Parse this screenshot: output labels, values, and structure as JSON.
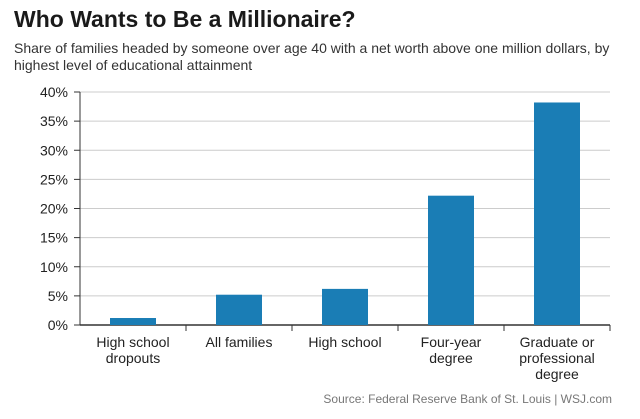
{
  "title": "Who Wants to Be a Millionaire?",
  "subtitle": "Share of families headed by someone over age 40 with a net worth above one million dollars, by highest level of educational attainment",
  "source": "Source: Federal Reserve Bank of St. Louis  |  WSJ.com",
  "colors": {
    "bar": "#1a7db5",
    "grid": "#cccccc",
    "axis": "#333333"
  },
  "chart_data": {
    "type": "bar",
    "title": "Who Wants to Be a Millionaire?",
    "subtitle": "Share of families headed by someone over age 40 with a net worth above one million dollars, by highest level of educational attainment",
    "categories": [
      [
        "High school",
        "dropouts"
      ],
      [
        "All families"
      ],
      [
        "High school"
      ],
      [
        "Four-year",
        "degree"
      ],
      [
        "Graduate or",
        "professional",
        "degree"
      ]
    ],
    "values": [
      1.2,
      5.2,
      6.2,
      22.2,
      38.2
    ],
    "ylim": [
      0,
      40
    ],
    "yticks": [
      "0%",
      "5%",
      "10%",
      "15%",
      "20%",
      "25%",
      "30%",
      "35%",
      "40%"
    ],
    "grid": true,
    "legend": "none"
  }
}
